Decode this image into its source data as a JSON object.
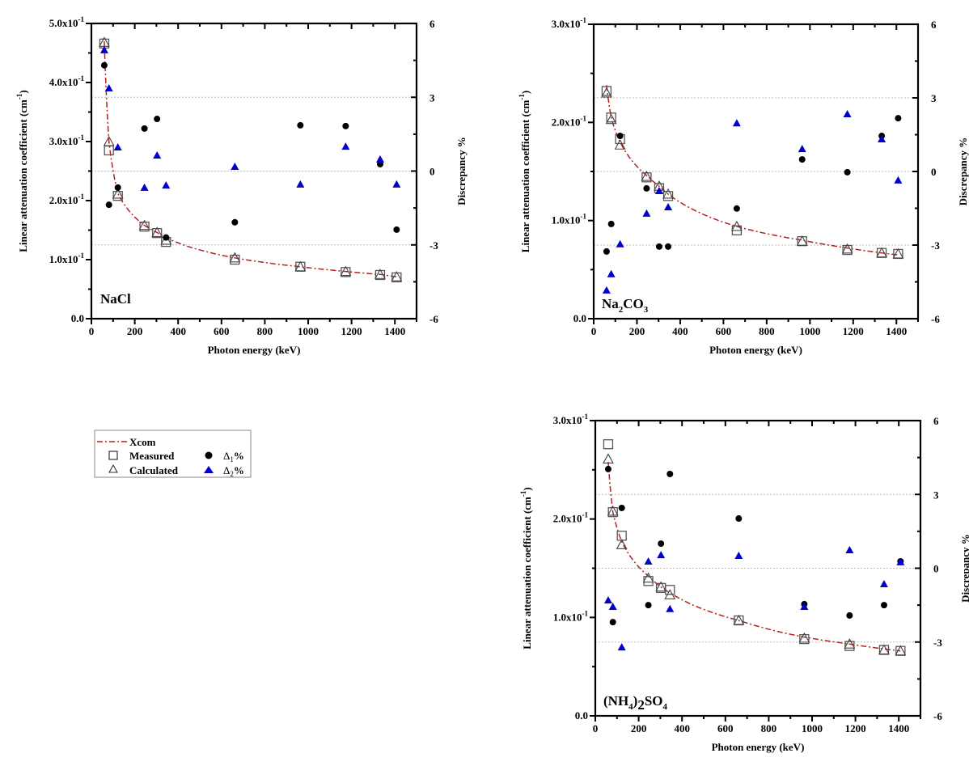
{
  "chart_data": [
    {
      "type": "scatter",
      "material_label": {
        "main": "NaCl"
      },
      "xlabel": "Photon energy (keV)",
      "ylabel": "Linear  attenuation coefficient (cm",
      "ylabel_sup": "-1",
      "ylabel_close": ")",
      "y2label": "Discrepancy %",
      "xlim": [
        0,
        1500
      ],
      "ylim": [
        0,
        0.5
      ],
      "y2lim": [
        -6,
        6
      ],
      "xticks": [
        "0",
        "200",
        "400",
        "600",
        "800",
        "1000",
        "1200",
        "1400"
      ],
      "yticks": [
        {
          "base": "0.0",
          "exp": ""
        },
        {
          "base": "1.0x10",
          "exp": "-1"
        },
        {
          "base": "2.0x10",
          "exp": "-1"
        },
        {
          "base": "3.0x10",
          "exp": "-1"
        },
        {
          "base": "4.0x10",
          "exp": "-1"
        },
        {
          "base": "5.0x10",
          "exp": "-1"
        }
      ],
      "y2ticks": [
        "-6",
        "-3",
        "0",
        "3",
        "6"
      ],
      "energies": [
        59.5,
        81,
        122,
        244.7,
        302.9,
        344.3,
        661.7,
        964,
        1173,
        1332,
        1408
      ],
      "series": [
        {
          "name": "Measured",
          "values": [
            0.466,
            0.285,
            0.208,
            0.156,
            0.145,
            0.13,
            0.1,
            0.088,
            0.079,
            0.074,
            0.07
          ]
        },
        {
          "name": "Calculated",
          "values": [
            0.468,
            0.3,
            0.211,
            0.158,
            0.146,
            0.133,
            0.103,
            0.088,
            0.08,
            0.075,
            0.071
          ]
        },
        {
          "name": "Xcom",
          "values": [
            0.47,
            0.3,
            0.212,
            0.158,
            0.146,
            0.137,
            0.103,
            0.088,
            0.08,
            0.075,
            0.071
          ]
        },
        {
          "name": "Δ1%",
          "axis": "right",
          "values": [
            4.3,
            -1.37,
            -0.67,
            1.73,
            2.12,
            -2.7,
            -2.08,
            1.86,
            1.83,
            0.28,
            -2.38
          ]
        },
        {
          "name": "Δ2%",
          "axis": "right",
          "values": [
            4.92,
            3.37,
            0.97,
            -0.67,
            0.64,
            -0.58,
            0.18,
            -0.54,
            1.0,
            0.48,
            -0.54
          ]
        }
      ]
    },
    {
      "type": "scatter",
      "material_label": {
        "main": "Na",
        "sub1": "2",
        "mid": "CO",
        "sub2": "3"
      },
      "xlabel": "Photon energy (keV)",
      "ylabel": "Linear  attenuation coefficient (cm",
      "ylabel_sup": "-1",
      "ylabel_close": ")",
      "y2label": "Discrepancy %",
      "xlim": [
        0,
        1500
      ],
      "ylim": [
        0,
        0.3
      ],
      "y2lim": [
        -6,
        6
      ],
      "xticks": [
        "0",
        "200",
        "400",
        "600",
        "800",
        "1000",
        "1200",
        "1400"
      ],
      "yticks": [
        {
          "base": "0.0",
          "exp": ""
        },
        {
          "base": "1.0x10",
          "exp": "-1"
        },
        {
          "base": "2.0x10",
          "exp": "-1"
        },
        {
          "base": "3.0x10",
          "exp": "-1"
        }
      ],
      "y2ticks": [
        "-6",
        "-3",
        "0",
        "3",
        "6"
      ],
      "energies": [
        59.5,
        81,
        122,
        244.7,
        302.9,
        344.3,
        661.7,
        964,
        1173,
        1332,
        1408
      ],
      "series": [
        {
          "name": "Measured",
          "values": [
            0.232,
            0.205,
            0.183,
            0.144,
            0.133,
            0.125,
            0.09,
            0.079,
            0.07,
            0.067,
            0.066
          ]
        },
        {
          "name": "Calculated",
          "values": [
            0.23,
            0.203,
            0.177,
            0.145,
            0.135,
            0.127,
            0.094,
            0.079,
            0.071,
            0.067,
            0.066
          ]
        },
        {
          "name": "Xcom",
          "values": [
            0.238,
            0.205,
            0.18,
            0.146,
            0.135,
            0.127,
            0.094,
            0.08,
            0.072,
            0.067,
            0.065
          ]
        },
        {
          "name": "Δ1%",
          "axis": "right",
          "values": [
            -3.26,
            -2.14,
            1.45,
            -0.69,
            -3.06,
            -3.06,
            -1.51,
            0.49,
            -0.03,
            1.45,
            2.17
          ]
        },
        {
          "name": "Δ2%",
          "axis": "right",
          "values": [
            -4.84,
            -4.18,
            -2.96,
            -1.71,
            -0.79,
            -1.45,
            1.97,
            0.92,
            2.34,
            1.32,
            -0.36
          ]
        }
      ]
    },
    {
      "type": "scatter",
      "material_label": {
        "main": "(NH",
        "sub1": "4",
        "mid": ")",
        "mid2": "2",
        "tail": "SO",
        "sub2": "4"
      },
      "xlabel": "Photon energy (keV)",
      "ylabel": "Linear  attenuation coefficient (cm",
      "ylabel_sup": "-1",
      "ylabel_close": ")",
      "y2label": "Discrepancy %",
      "xlim": [
        0,
        1500
      ],
      "ylim": [
        0,
        0.3
      ],
      "y2lim": [
        -6,
        6
      ],
      "xticks": [
        "0",
        "200",
        "400",
        "600",
        "800",
        "1000",
        "1200",
        "1400"
      ],
      "yticks": [
        {
          "base": "0.0",
          "exp": ""
        },
        {
          "base": "1.0x10",
          "exp": "-1"
        },
        {
          "base": "2.0x10",
          "exp": "-1"
        },
        {
          "base": "3.0x10",
          "exp": "-1"
        }
      ],
      "y2ticks": [
        "-6",
        "-3",
        "0",
        "3",
        "6"
      ],
      "energies": [
        59.5,
        81,
        122,
        244.7,
        302.9,
        344.3,
        661.7,
        964,
        1173,
        1332,
        1408
      ],
      "series": [
        {
          "name": "Measured",
          "values": [
            0.276,
            0.207,
            0.183,
            0.137,
            0.13,
            0.128,
            0.097,
            0.078,
            0.071,
            0.067,
            0.066
          ]
        },
        {
          "name": "Calculated",
          "values": [
            0.261,
            0.208,
            0.174,
            0.14,
            0.131,
            0.123,
            0.097,
            0.079,
            0.073,
            0.067,
            0.066
          ]
        },
        {
          "name": "Xcom",
          "values": [
            0.258,
            0.207,
            0.177,
            0.142,
            0.131,
            0.125,
            0.097,
            0.08,
            0.073,
            0.068,
            0.066
          ]
        },
        {
          "name": "Δ1%",
          "axis": "right",
          "values": [
            4.03,
            -2.19,
            2.45,
            -1.5,
            1.0,
            3.83,
            2.02,
            -1.46,
            -1.92,
            -1.5,
            0.28
          ]
        },
        {
          "name": "Δ2%",
          "axis": "right",
          "values": [
            -1.3,
            -1.56,
            -3.21,
            0.28,
            0.54,
            -1.65,
            0.51,
            -1.56,
            0.74,
            -0.64,
            0.25
          ]
        }
      ]
    }
  ],
  "legend": {
    "xcom": "Xcom",
    "measured": "Measured",
    "calculated": "Calculated",
    "delta1": {
      "sym": "Δ",
      "sub": "1",
      "pct": "%"
    },
    "delta2": {
      "sym": "Δ",
      "sub": "2",
      "pct": "%"
    }
  },
  "colors": {
    "xcom": "#b22222",
    "delta2": "#0000cc",
    "delta1": "#000000",
    "marker": "#555555"
  }
}
